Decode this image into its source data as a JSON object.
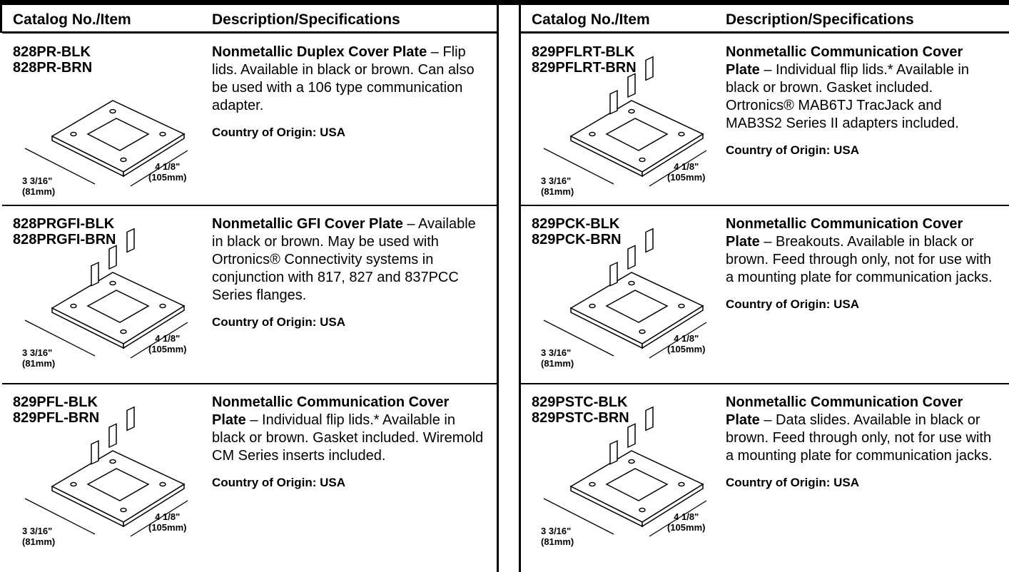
{
  "tables": [
    {
      "header": [
        "Catalog No./Item",
        "Description/Specifications"
      ],
      "rows": [
        {
          "items": [
            "828PR-BLK",
            "828PR-BRN"
          ],
          "title": "Nonmetallic Duplex Cover Plate",
          "desc": " – Flip lids. Available in black or brown. Can also be used with a 106 type communication adapter.",
          "origin": "Country of Origin: USA",
          "dims": [
            "3 3/16\"",
            "(81mm)",
            "4 1/8\"",
            "(105mm)"
          ]
        },
        {
          "items": [
            "828PRGFI-BLK",
            "828PRGFI-BRN"
          ],
          "title": "Nonmetallic GFI Cover Plate",
          "desc": " – Available in black or brown. May be used with Ortronics® Connectivity systems in conjunction with 817, 827 and 837PCC Series flanges.",
          "origin": "Country of Origin: USA",
          "dims": [
            "3 3/16\"",
            "(81mm)",
            "4 1/8\"",
            "(105mm)"
          ]
        },
        {
          "items": [
            "829PFL-BLK",
            "829PFL-BRN"
          ],
          "title": "Nonmetallic Communication Cover Plate",
          "desc": " – Individual flip lids.* Available in black or brown. Gasket included. Wiremold CM Series inserts included.",
          "origin": "Country of Origin: USA",
          "dims": [
            "3 3/16\"",
            "(81mm)",
            "4 1/8\"",
            "(105mm)"
          ]
        }
      ]
    },
    {
      "header": [
        "Catalog No./Item",
        "Description/Specifications"
      ],
      "rows": [
        {
          "items": [
            "829PFLRT-BLK",
            "829PFLRT-BRN"
          ],
          "title": "Nonmetallic Communication Cover Plate",
          "desc": " – Individual flip lids.* Available in black or brown. Gasket included. Ortronics® MAB6TJ TracJack and MAB3S2 Series II adapters included.",
          "origin": "Country of Origin: USA",
          "dims": [
            "3 3/16\"",
            "(81mm)",
            "4 1/8\"",
            "(105mm)"
          ]
        },
        {
          "items": [
            "829PCK-BLK",
            "829PCK-BRN"
          ],
          "title": "Nonmetallic Communication Cover Plate",
          "desc": " – Breakouts. Available in black or brown. Feed through only, not for use with a mounting plate for communication jacks.",
          "origin": "Country of Origin: USA",
          "dims": [
            "3 3/16\"",
            "(81mm)",
            "4 1/8\"",
            "(105mm)"
          ]
        },
        {
          "items": [
            "829PSTC-BLK",
            "829PSTC-BRN"
          ],
          "title": "Nonmetallic Communication Cover Plate",
          "desc": " – Data slides. Available in black or brown. Feed through only, not for use with a mounting plate for communication jacks.",
          "origin": "Country of Origin: USA",
          "dims": [
            "3 3/16\"",
            "(81mm)",
            "4 1/8\"",
            "(105mm)"
          ]
        }
      ]
    }
  ]
}
